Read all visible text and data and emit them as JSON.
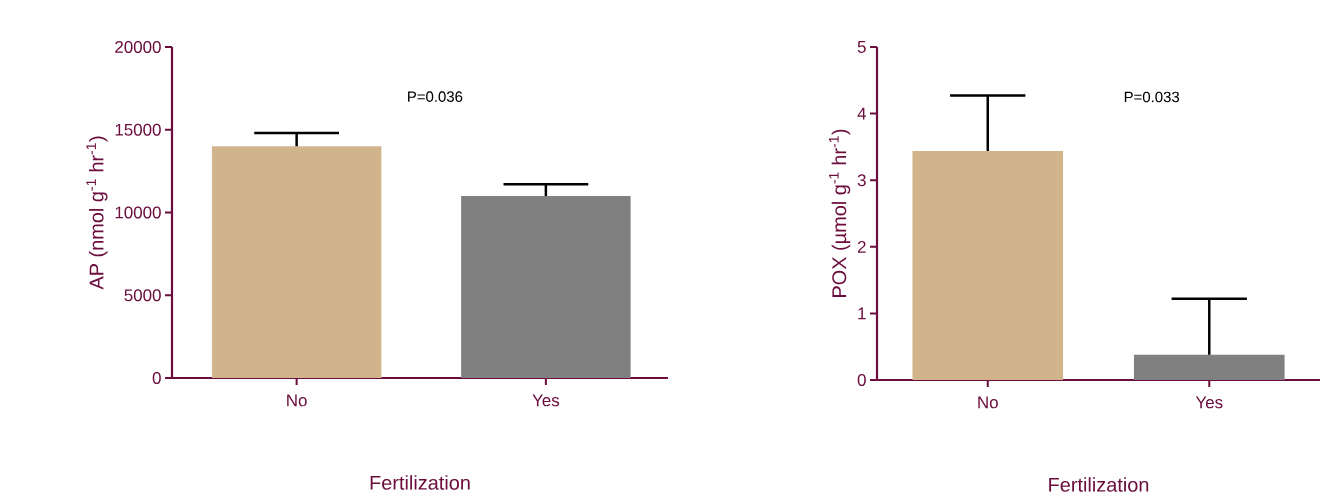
{
  "chart_data": [
    {
      "type": "bar",
      "categories": [
        "No",
        "Yes"
      ],
      "values": [
        14000,
        11000
      ],
      "colors": [
        "#d2b48c",
        "#808080"
      ],
      "errors": [
        [
          14000,
          14800
        ],
        [
          11000,
          11700
        ]
      ],
      "xlabel": "Fertilization",
      "ylabel": "AP  (nmol g$^{-1}$ hr$^{-1}$)",
      "ylim": [
        0,
        20000
      ],
      "yticks": [
        0,
        5000,
        10000,
        15000,
        20000
      ],
      "annotations": [
        "P=0.036"
      ]
    },
    {
      "type": "bar",
      "categories": [
        "No",
        "Yes"
      ],
      "values": [
        3.44,
        0.38
      ],
      "colors": [
        "#d2b48c",
        "#808080"
      ],
      "errors": [
        [
          3.44,
          4.27
        ],
        [
          0.38,
          1.22
        ]
      ],
      "xlabel": "Fertilization",
      "ylabel": "POX  (µmol g$^{-1}$ hr$^{-1}$)",
      "ylim": [
        0,
        5
      ],
      "yticks": [
        0,
        1,
        2,
        3,
        4,
        5
      ],
      "annotations": [
        "P=0.033"
      ]
    }
  ]
}
